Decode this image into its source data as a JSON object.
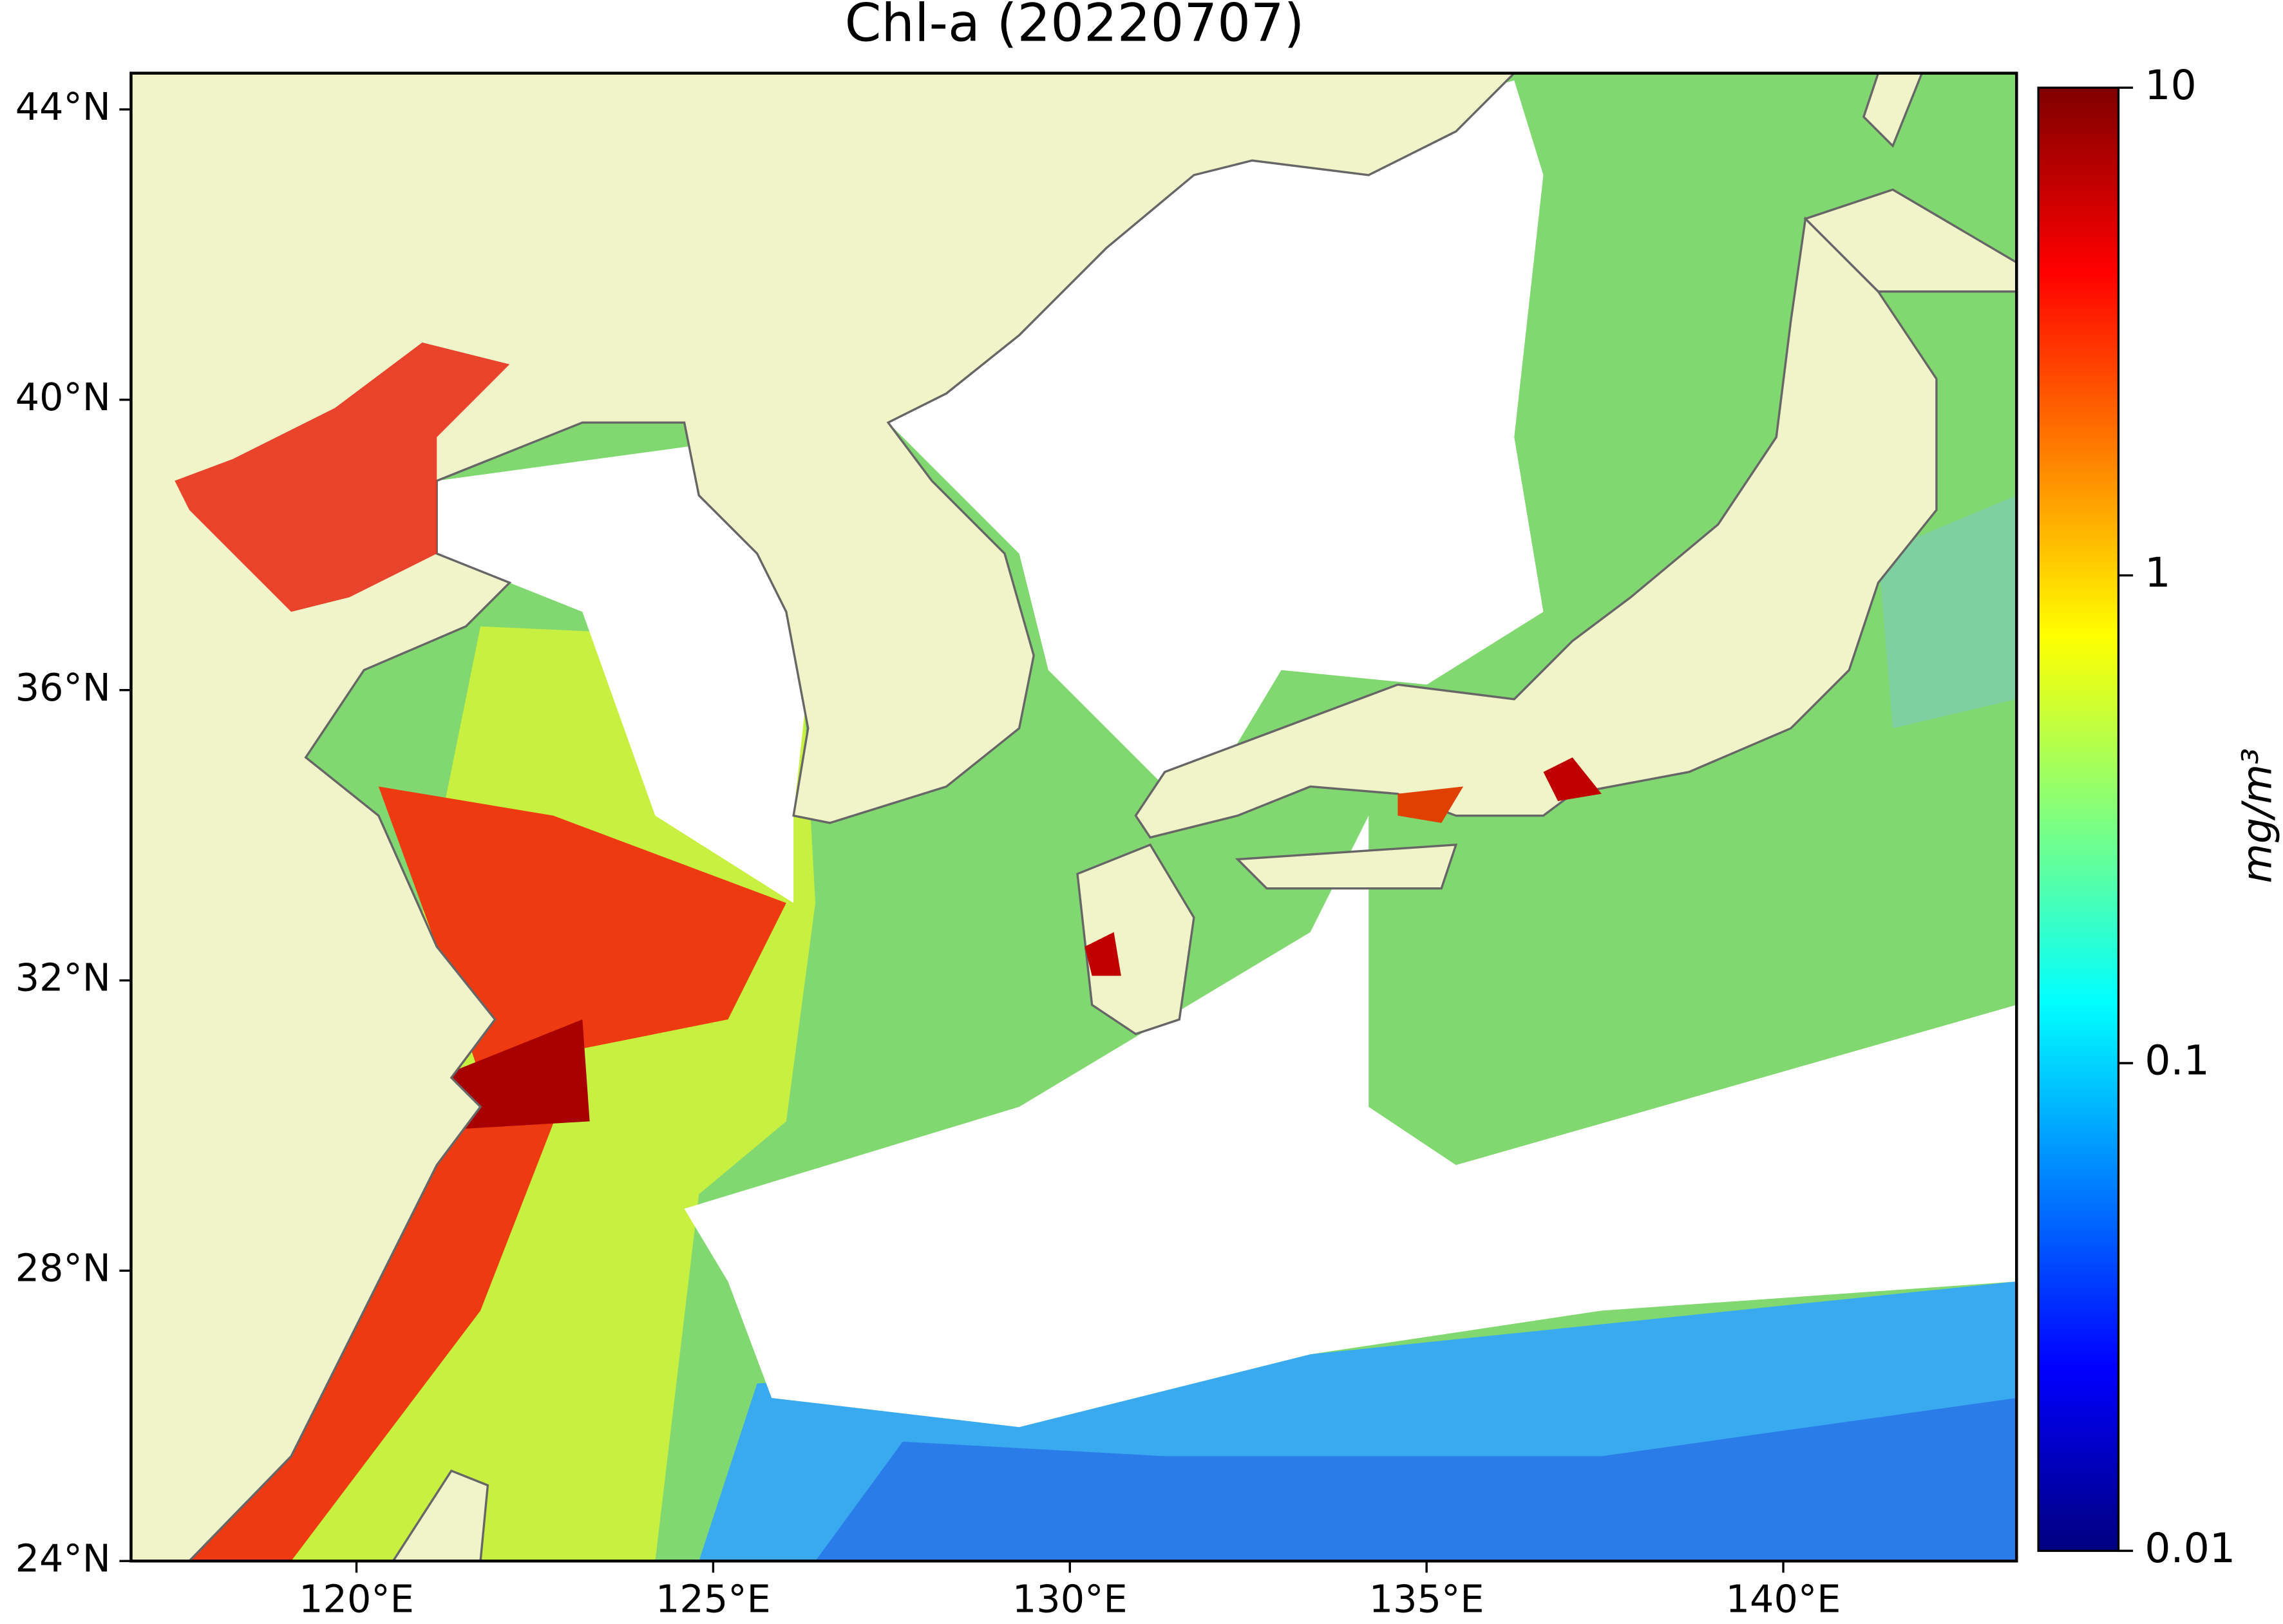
{
  "map": {
    "title": "Chl-a (20220707)",
    "xlim": [
      116.84,
      143.27
    ],
    "ylim": [
      24,
      44.5
    ],
    "xticks": [
      {
        "value": 120,
        "label": "120°E"
      },
      {
        "value": 125,
        "label": "125°E"
      },
      {
        "value": 130,
        "label": "130°E"
      },
      {
        "value": 135,
        "label": "135°E"
      },
      {
        "value": 140,
        "label": "140°E"
      }
    ],
    "yticks": [
      {
        "value": 24,
        "label": "24°N"
      },
      {
        "value": 28,
        "label": "28°N"
      },
      {
        "value": 32,
        "label": "32°N"
      },
      {
        "value": 36,
        "label": "36°N"
      },
      {
        "value": 40,
        "label": "40°N"
      },
      {
        "value": 44,
        "label": "44°N"
      }
    ]
  },
  "colorbar": {
    "label": "mg/m³",
    "scale": "log",
    "colormap": "jet",
    "lim": [
      0.01,
      10
    ],
    "ticks": [
      0.01,
      0.1,
      1,
      10
    ]
  }
}
